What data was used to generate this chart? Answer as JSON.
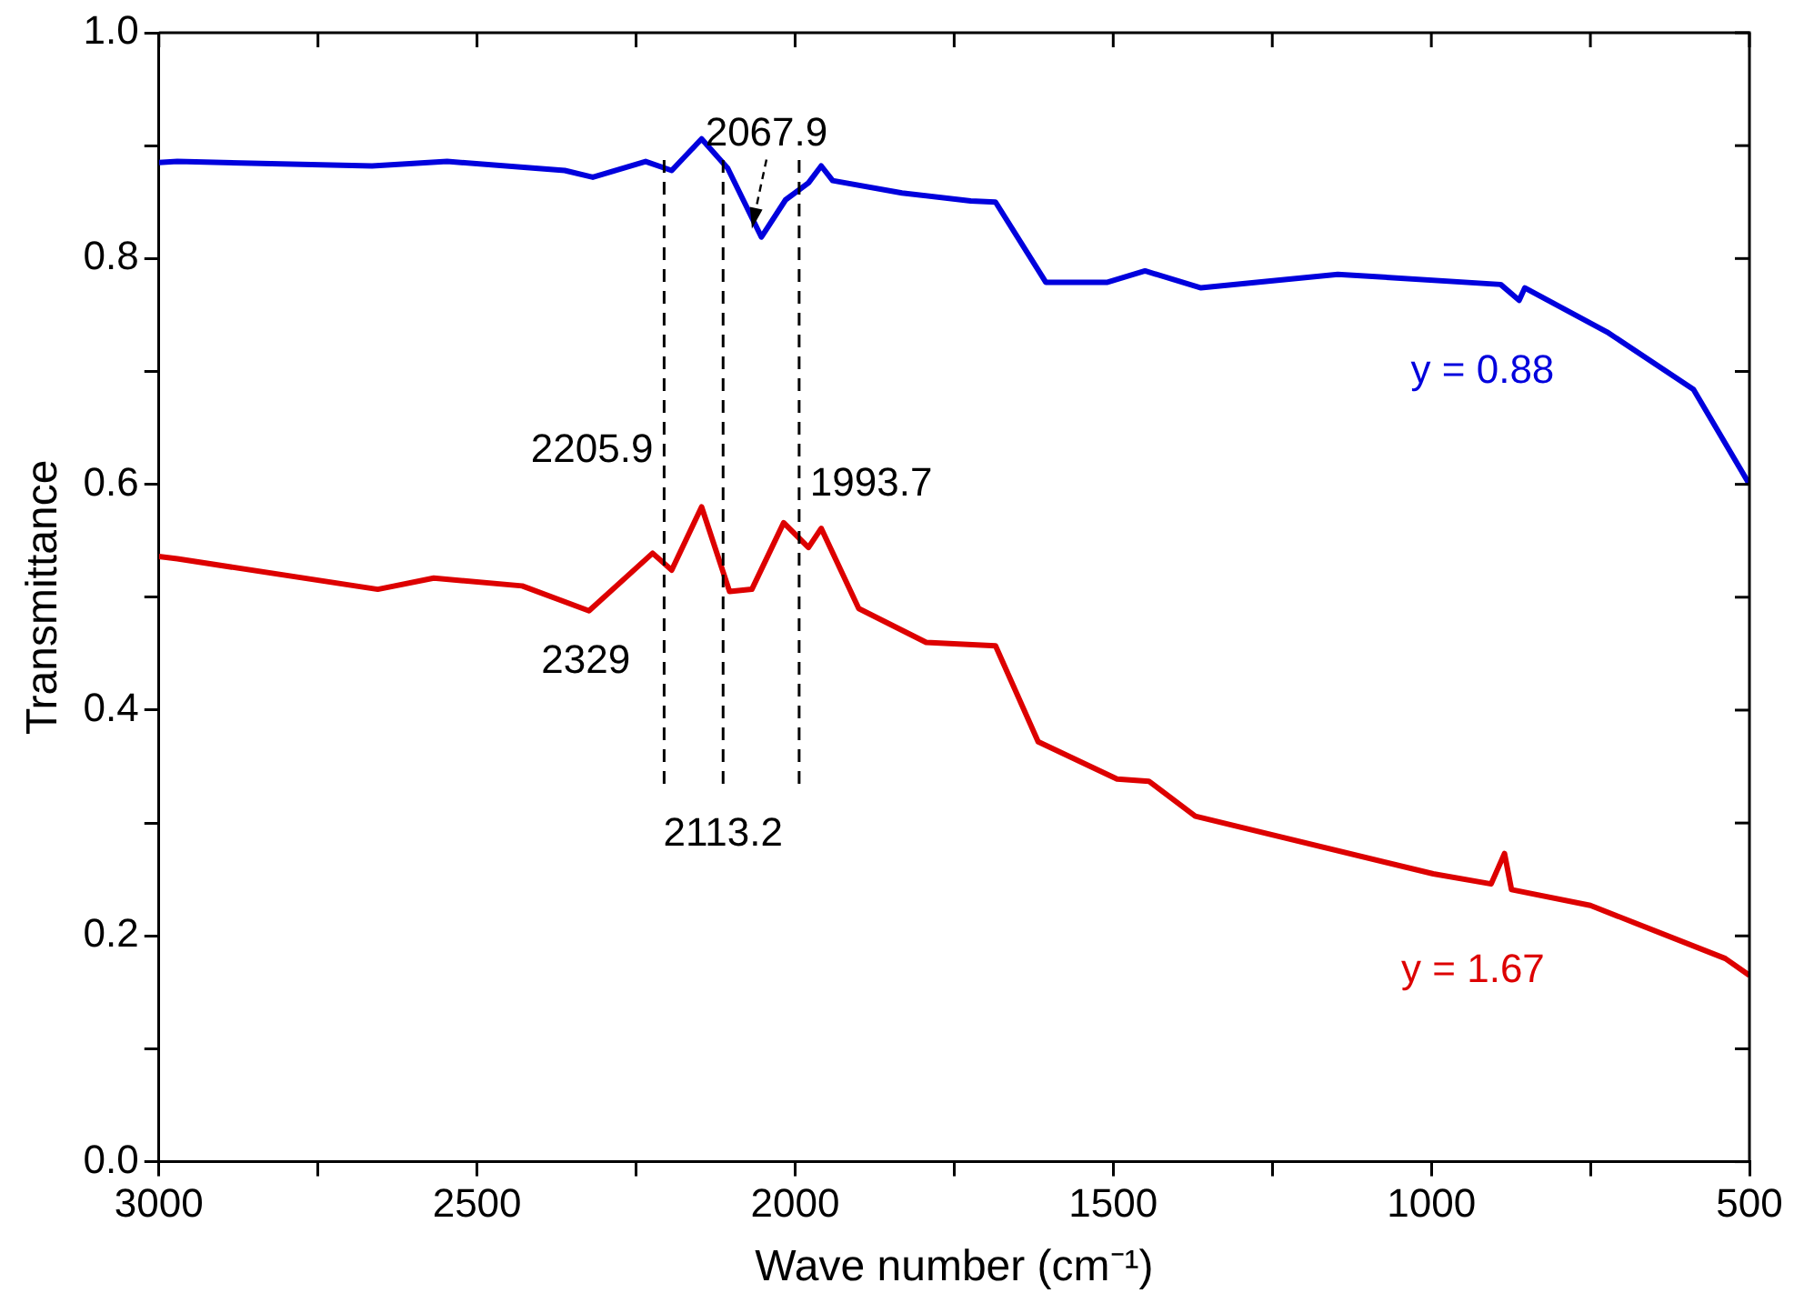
{
  "chart_data": {
    "type": "line",
    "xlabel": "Wave number (cm⁻¹)",
    "ylabel": "Transmittance",
    "xlim": [
      3000,
      500
    ],
    "ylim": [
      0,
      1
    ],
    "xticks": [
      3000,
      {
        "value": 2750,
        "label": null
      },
      2500,
      {
        "value": 2250,
        "label": null
      },
      2000,
      {
        "value": 1750,
        "label": null
      },
      1500,
      {
        "value": 1250,
        "label": null
      },
      1000,
      {
        "value": 750,
        "label": null
      },
      500
    ],
    "yticks": [
      {
        "value": 0,
        "label": "0.0"
      },
      {
        "value": 0.1,
        "label": null
      },
      0.2,
      {
        "value": 0.3,
        "label": null
      },
      0.4,
      {
        "value": 0.5,
        "label": null
      },
      0.6,
      {
        "value": 0.7,
        "label": null
      },
      0.8,
      {
        "value": 0.9,
        "label": null
      },
      {
        "value": 1,
        "label": "1.0"
      }
    ],
    "grid": false,
    "legend": false,
    "marker": "none",
    "line_style": "solid",
    "series": [
      {
        "name": "y = 0.88",
        "color": "#0000dd",
        "x": [
          3000,
          2971,
          2665,
          2547,
          2362,
          2318,
          2235,
          2194,
          2147,
          2106,
          2053,
          2015,
          1979,
          1959,
          1941,
          1832,
          1724,
          1685,
          1606,
          1509,
          1450,
          1362,
          1147,
          891,
          862,
          853,
          724,
          588,
          500
        ],
        "values": [
          0.885,
          0.886,
          0.882,
          0.886,
          0.878,
          0.872,
          0.886,
          0.878,
          0.906,
          0.88,
          0.819,
          0.852,
          0.867,
          0.882,
          0.869,
          0.858,
          0.851,
          0.85,
          0.779,
          0.779,
          0.789,
          0.774,
          0.786,
          0.777,
          0.763,
          0.774,
          0.735,
          0.684,
          0.6
        ]
      },
      {
        "name": "y = 1.67",
        "color": "#dd0000",
        "x": [
          3000,
          2971,
          2656,
          2568,
          2429,
          2324,
          2224,
          2194,
          2147,
          2103,
          2068,
          2018,
          1979,
          1959,
          1900,
          1794,
          1685,
          1618,
          1494,
          1444,
          1371,
          997,
          906,
          885,
          874,
          750,
          538,
          500
        ],
        "values": [
          0.536,
          0.534,
          0.507,
          0.517,
          0.51,
          0.488,
          0.539,
          0.524,
          0.58,
          0.505,
          0.507,
          0.566,
          0.544,
          0.561,
          0.49,
          0.46,
          0.457,
          0.372,
          0.339,
          0.337,
          0.306,
          0.255,
          0.246,
          0.273,
          0.241,
          0.227,
          0.18,
          0.165
        ]
      }
    ],
    "ref_lines": [
      {
        "axis": "x",
        "value": 2205.9,
        "label": "2205.9",
        "color": "#000000",
        "line_style": "dashed"
      },
      {
        "axis": "x",
        "value": 2113.2,
        "label": "2113.2",
        "color": "#000000",
        "line_style": "dashed"
      },
      {
        "axis": "x",
        "value": 1993.7,
        "label": "1993.7",
        "color": "#000000",
        "line_style": "dashed"
      }
    ],
    "annotations": [
      {
        "text": "2067.9",
        "x": 2067.9,
        "y": 0.82
      },
      {
        "text": "2329",
        "x": 2329,
        "y": 0.488
      }
    ]
  }
}
